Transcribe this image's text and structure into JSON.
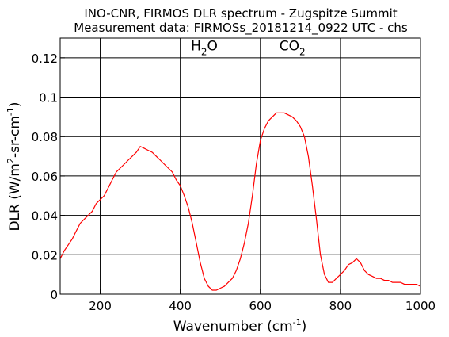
{
  "chart_data": {
    "type": "line",
    "title": "INO-CNR, FIRMOS DLR spectrum - Zugspitze Summit",
    "subtitle": "Measurement data: FIRMOSs_20181214_0922 UTC - chs",
    "xlabel": {
      "main": "Wavenumber (cm",
      "sup": "-1",
      "end": ")"
    },
    "ylabel": {
      "main": "DLR (W/m",
      "sup1": "2",
      "mid": "-sr-cm",
      "sup2": "-1",
      "end": ")"
    },
    "xlim": [
      100,
      1000
    ],
    "ylim": [
      0,
      0.13
    ],
    "x_ticks": [
      200,
      400,
      600,
      800,
      1000
    ],
    "x_tick_labels": [
      "200",
      "400",
      "600",
      "800",
      "1000"
    ],
    "y_ticks": [
      0,
      0.02,
      0.04,
      0.06,
      0.08,
      0.1,
      0.12
    ],
    "y_tick_labels": [
      "0",
      "0.02",
      "0.04",
      "0.06",
      "0.08",
      "0.1",
      "0.12"
    ],
    "grid": true,
    "line_color": "#ff0000",
    "annotations": [
      {
        "base": "H",
        "sub": "2",
        "rest": "O",
        "x": 460,
        "y": 0.1237
      },
      {
        "base": "CO",
        "sub": "2",
        "rest": "",
        "x": 680,
        "y": 0.1237
      }
    ],
    "series": [
      {
        "name": "",
        "points": [
          [
            100,
            0.018
          ],
          [
            110,
            0.022
          ],
          [
            120,
            0.025
          ],
          [
            130,
            0.028
          ],
          [
            140,
            0.032
          ],
          [
            150,
            0.036
          ],
          [
            160,
            0.038
          ],
          [
            170,
            0.04
          ],
          [
            180,
            0.042
          ],
          [
            190,
            0.046
          ],
          [
            200,
            0.048
          ],
          [
            210,
            0.05
          ],
          [
            220,
            0.054
          ],
          [
            230,
            0.058
          ],
          [
            240,
            0.062
          ],
          [
            250,
            0.064
          ],
          [
            260,
            0.066
          ],
          [
            270,
            0.068
          ],
          [
            280,
            0.07
          ],
          [
            290,
            0.072
          ],
          [
            300,
            0.075
          ],
          [
            310,
            0.074
          ],
          [
            320,
            0.073
          ],
          [
            330,
            0.072
          ],
          [
            340,
            0.07
          ],
          [
            350,
            0.068
          ],
          [
            360,
            0.066
          ],
          [
            370,
            0.064
          ],
          [
            380,
            0.062
          ],
          [
            390,
            0.058
          ],
          [
            400,
            0.055
          ],
          [
            410,
            0.05
          ],
          [
            420,
            0.044
          ],
          [
            430,
            0.036
          ],
          [
            440,
            0.026
          ],
          [
            450,
            0.016
          ],
          [
            460,
            0.008
          ],
          [
            470,
            0.004
          ],
          [
            480,
            0.002
          ],
          [
            490,
            0.002
          ],
          [
            500,
            0.003
          ],
          [
            510,
            0.004
          ],
          [
            520,
            0.006
          ],
          [
            530,
            0.008
          ],
          [
            540,
            0.012
          ],
          [
            550,
            0.018
          ],
          [
            560,
            0.026
          ],
          [
            570,
            0.036
          ],
          [
            580,
            0.05
          ],
          [
            590,
            0.066
          ],
          [
            600,
            0.078
          ],
          [
            610,
            0.084
          ],
          [
            620,
            0.088
          ],
          [
            630,
            0.09
          ],
          [
            640,
            0.092
          ],
          [
            650,
            0.092
          ],
          [
            660,
            0.092
          ],
          [
            670,
            0.091
          ],
          [
            680,
            0.09
          ],
          [
            690,
            0.088
          ],
          [
            700,
            0.085
          ],
          [
            710,
            0.08
          ],
          [
            720,
            0.07
          ],
          [
            730,
            0.055
          ],
          [
            740,
            0.038
          ],
          [
            750,
            0.02
          ],
          [
            760,
            0.01
          ],
          [
            770,
            0.006
          ],
          [
            780,
            0.006
          ],
          [
            790,
            0.008
          ],
          [
            800,
            0.01
          ],
          [
            810,
            0.012
          ],
          [
            820,
            0.015
          ],
          [
            830,
            0.016
          ],
          [
            840,
            0.018
          ],
          [
            850,
            0.016
          ],
          [
            860,
            0.012
          ],
          [
            870,
            0.01
          ],
          [
            880,
            0.009
          ],
          [
            890,
            0.008
          ],
          [
            900,
            0.008
          ],
          [
            910,
            0.007
          ],
          [
            920,
            0.007
          ],
          [
            930,
            0.006
          ],
          [
            940,
            0.006
          ],
          [
            950,
            0.006
          ],
          [
            960,
            0.005
          ],
          [
            970,
            0.005
          ],
          [
            980,
            0.005
          ],
          [
            990,
            0.005
          ],
          [
            1000,
            0.004
          ]
        ]
      }
    ]
  }
}
